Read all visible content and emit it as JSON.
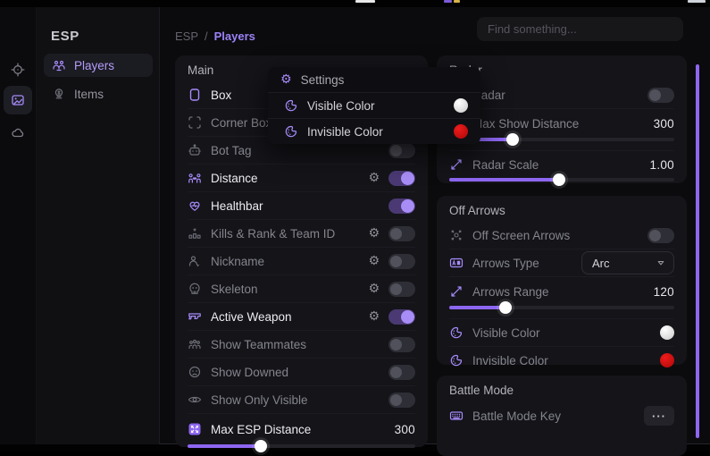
{
  "window": {
    "breadcrumb": {
      "root": "ESP",
      "separator": "/",
      "current": "Players"
    },
    "search_placeholder": "Find something..."
  },
  "rail": {
    "icons": [
      "crosshair",
      "gallery",
      "cloud"
    ],
    "active": "gallery"
  },
  "sidebar": {
    "title": "ESP",
    "items": [
      {
        "label": "Players",
        "active": true
      },
      {
        "label": "Items",
        "active": false
      }
    ]
  },
  "popup": {
    "title": "Settings",
    "items": [
      {
        "label": "Visible Color",
        "swatch": "#ededed"
      },
      {
        "label": "Invisible Color",
        "swatch": "#d60d0d"
      }
    ]
  },
  "main_panel": {
    "title": "Main",
    "rows": [
      {
        "label": "Box",
        "enabled": true,
        "gear": true,
        "on": true
      },
      {
        "label": "Corner Box",
        "enabled": false,
        "gear": true,
        "on": false
      },
      {
        "label": "Bot Tag",
        "enabled": false,
        "gear": false,
        "on": false
      },
      {
        "label": "Distance",
        "enabled": true,
        "gear": true,
        "on": true
      },
      {
        "label": "Healthbar",
        "enabled": true,
        "gear": false,
        "on": true
      },
      {
        "label": "Kills & Rank & Team ID",
        "enabled": false,
        "gear": true,
        "on": false
      },
      {
        "label": "Nickname",
        "enabled": false,
        "gear": true,
        "on": false
      },
      {
        "label": "Skeleton",
        "enabled": false,
        "gear": true,
        "on": false
      },
      {
        "label": "Active Weapon",
        "enabled": true,
        "gear": true,
        "on": true
      },
      {
        "label": "Show Teammates",
        "enabled": false,
        "gear": false,
        "on": false
      },
      {
        "label": "Show Downed",
        "enabled": false,
        "gear": false,
        "on": false
      },
      {
        "label": "Show Only Visible",
        "enabled": false,
        "gear": false,
        "on": false
      },
      {
        "label": "Max ESP Distance",
        "enabled": true,
        "value": "300",
        "fill": 32
      }
    ]
  },
  "radar_panel": {
    "title": "Radar",
    "rows": {
      "radar": {
        "label": "Radar",
        "on": false
      },
      "max_show_distance": {
        "label": "Max Show Distance",
        "value": "300",
        "fill": 28
      },
      "radar_scale": {
        "label": "Radar Scale",
        "value": "1.00",
        "fill": 49
      }
    }
  },
  "off_arrows_panel": {
    "title": "Off Arrows",
    "rows": {
      "off_screen_arrows": {
        "label": "Off Screen Arrows",
        "on": false
      },
      "arrows_type": {
        "label": "Arrows Type",
        "value": "Arc"
      },
      "arrows_range": {
        "label": "Arrows Range",
        "value": "120",
        "fill": 25
      },
      "visible_color": {
        "label": "Visible Color",
        "swatch": "#ededed"
      },
      "invisible_color": {
        "label": "Invisible Color",
        "swatch": "#d60d0d"
      }
    }
  },
  "battle_mode_panel": {
    "title": "Battle Mode",
    "rows": {
      "battle_mode_key": {
        "label": "Battle Mode Key",
        "button": "···"
      }
    }
  },
  "colors": {
    "accent": "#a78bfa",
    "slider_fill": "#8d66f0",
    "swatch_white": "#ededed",
    "swatch_red": "#d60d0d",
    "scrollbar": "#8d66f0"
  }
}
